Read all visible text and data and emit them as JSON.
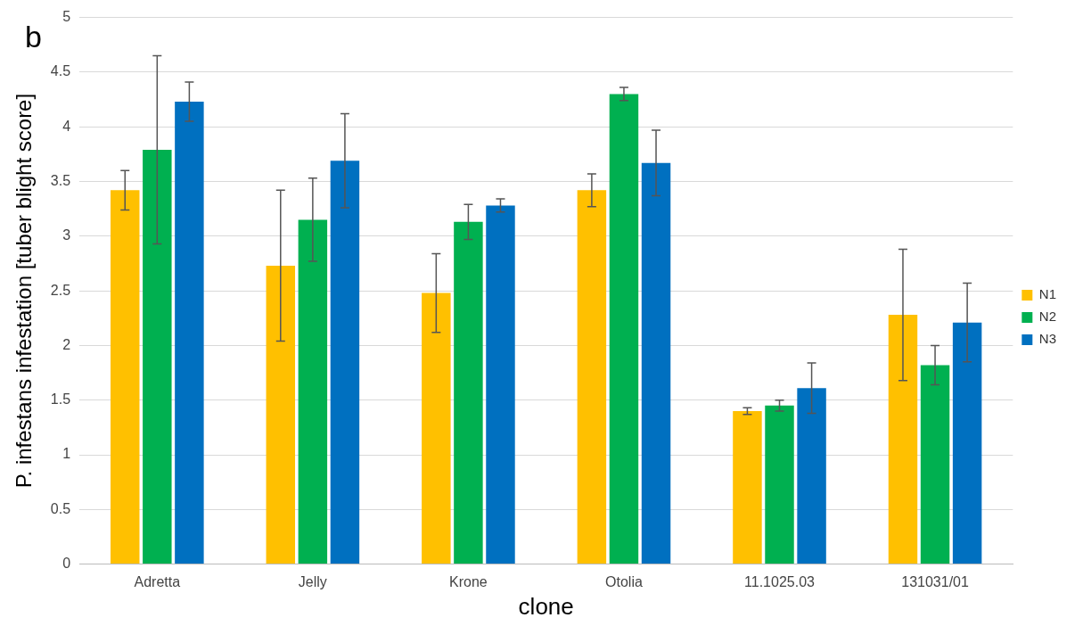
{
  "chart_data": {
    "type": "bar",
    "xlabel": "clone",
    "ylabel": "P. infestans infestation [tuber blight score]",
    "annotations": [
      "b"
    ],
    "categories": [
      "Adretta",
      "Jelly",
      "Krone",
      "Otolia",
      "11.1025.03",
      "131031/01"
    ],
    "series": [
      {
        "name": "N1",
        "color": "#ffc000",
        "values": [
          3.42,
          2.73,
          2.48,
          3.42,
          1.4,
          2.28
        ],
        "errors": [
          0.18,
          0.69,
          0.36,
          0.15,
          0.03,
          0.6
        ]
      },
      {
        "name": "N2",
        "color": "#00b050",
        "values": [
          3.79,
          3.15,
          3.13,
          4.3,
          1.45,
          1.82
        ],
        "errors": [
          0.86,
          0.38,
          0.16,
          0.06,
          0.05,
          0.18
        ]
      },
      {
        "name": "N3",
        "color": "#0070c0",
        "values": [
          4.23,
          3.69,
          3.28,
          3.67,
          1.61,
          2.21
        ],
        "errors": [
          0.18,
          0.43,
          0.06,
          0.3,
          0.23,
          0.36
        ]
      }
    ],
    "ylim": [
      0,
      5
    ],
    "yticks": [
      0,
      0.5,
      1,
      1.5,
      2,
      2.5,
      3,
      3.5,
      4,
      4.5,
      5
    ],
    "grid": "y",
    "legend": "right"
  }
}
